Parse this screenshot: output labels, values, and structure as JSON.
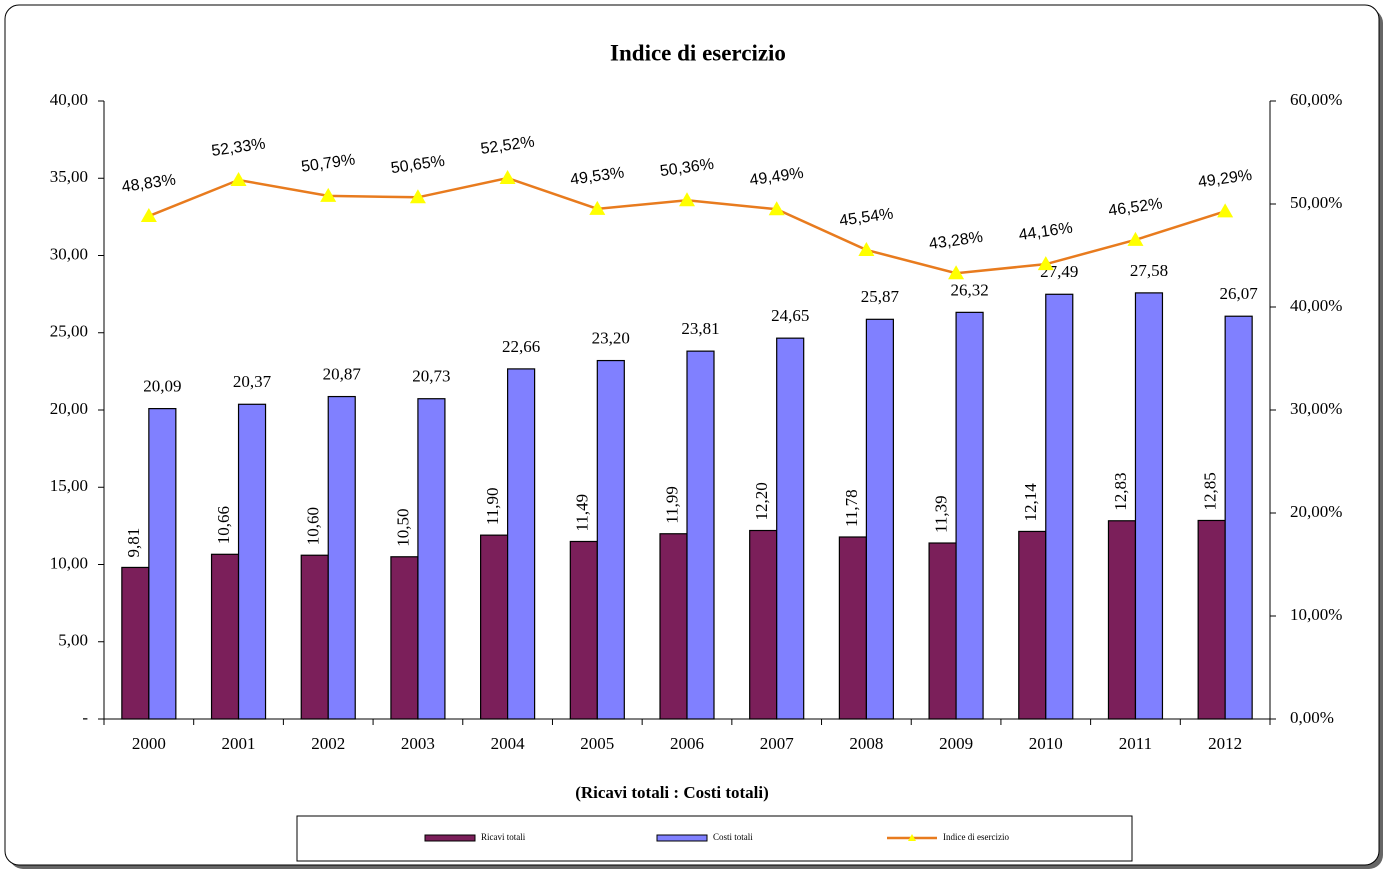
{
  "chart_data": {
    "type": "bar",
    "title": "Indice di esercizio",
    "xlabel": "(Ricavi totali : Costi totali)",
    "categories": [
      "2000",
      "2001",
      "2002",
      "2003",
      "2004",
      "2005",
      "2006",
      "2007",
      "2008",
      "2009",
      "2010",
      "2011",
      "2012"
    ],
    "series": [
      {
        "name": "Ricavi totali",
        "color": "#7b1f5a",
        "values": [
          9.81,
          10.66,
          10.6,
          10.5,
          11.9,
          11.49,
          11.99,
          12.2,
          11.78,
          11.39,
          12.14,
          12.83,
          12.85
        ],
        "value_labels": [
          "9,81",
          "10,66",
          "10,60",
          "10,50",
          "11,90",
          "11,49",
          "11,99",
          "12,20",
          "11,78",
          "11,39",
          "12,14",
          "12,83",
          "12,85"
        ]
      },
      {
        "name": "Costi totali",
        "color": "#8080ff",
        "values": [
          20.09,
          20.37,
          20.87,
          20.73,
          22.66,
          23.2,
          23.81,
          24.65,
          25.87,
          26.32,
          27.49,
          27.58,
          26.07
        ],
        "value_labels": [
          "20,09",
          "20,37",
          "20,87",
          "20,73",
          "22,66",
          "23,20",
          "23,81",
          "24,65",
          "25,87",
          "26,32",
          "27,49",
          "27,58",
          "26,07"
        ]
      },
      {
        "name": "Indice di esercizio",
        "type": "line",
        "axis": "y2",
        "color": "#e87b1e",
        "marker_color": "#ffff00",
        "values": [
          48.83,
          52.33,
          50.79,
          50.65,
          52.52,
          49.53,
          50.36,
          49.49,
          45.54,
          43.28,
          44.16,
          46.52,
          49.29
        ],
        "value_labels": [
          "48,83%",
          "52,33%",
          "50,79%",
          "50,65%",
          "52,52%",
          "49,53%",
          "50,36%",
          "49,49%",
          "45,54%",
          "43,28%",
          "44,16%",
          "46,52%",
          "49,29%"
        ]
      }
    ],
    "ylim": [
      0,
      40
    ],
    "yticks": [
      {
        "value": 0,
        "label": "-"
      },
      {
        "value": 5,
        "label": "5,00"
      },
      {
        "value": 10,
        "label": "10,00"
      },
      {
        "value": 15,
        "label": "15,00"
      },
      {
        "value": 20,
        "label": "20,00"
      },
      {
        "value": 25,
        "label": "25,00"
      },
      {
        "value": 30,
        "label": "30,00"
      },
      {
        "value": 35,
        "label": "35,00"
      },
      {
        "value": 40,
        "label": "40,00"
      }
    ],
    "y2lim": [
      0,
      60
    ],
    "y2ticks": [
      {
        "value": 0,
        "label": "0,00%"
      },
      {
        "value": 10,
        "label": "10,00%"
      },
      {
        "value": 20,
        "label": "20,00%"
      },
      {
        "value": 30,
        "label": "30,00%"
      },
      {
        "value": 40,
        "label": "40,00%"
      },
      {
        "value": 50,
        "label": "50,00%"
      },
      {
        "value": 60,
        "label": "60,00%"
      }
    ],
    "legend": "bottom"
  }
}
